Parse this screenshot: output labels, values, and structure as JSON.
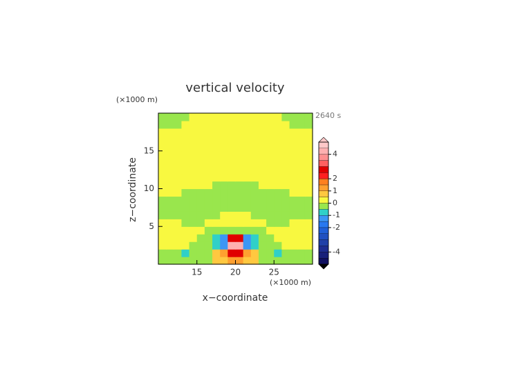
{
  "chart_data": {
    "type": "contour",
    "title": "vertical velocity",
    "xlabel": "x−coordinate",
    "ylabel": "z−coordinate",
    "xunit": "(×1000 m)",
    "yunit": "(×1000 m)",
    "time_label": "2640 s",
    "xlim": [
      10,
      30
    ],
    "ylim": [
      0,
      20
    ],
    "xticks": [
      15,
      20,
      25
    ],
    "yticks": [
      5,
      10,
      15
    ],
    "x": [
      10.5,
      11.5,
      12.5,
      13.5,
      14.5,
      15.5,
      16.5,
      17.5,
      18.5,
      19.5,
      20.5,
      21.5,
      22.5,
      23.5,
      24.5,
      25.5,
      26.5,
      27.5,
      28.5,
      29.5
    ],
    "y": [
      0.5,
      1.5,
      2.5,
      3.5,
      4.5,
      5.5,
      6.5,
      7.5,
      8.5,
      9.5,
      10.5,
      11.5,
      12.5,
      13.5,
      14.5,
      15.5,
      16.5,
      17.5,
      18.5,
      19.5
    ],
    "z": [
      [
        -0.2,
        -0.2,
        -0.2,
        -0.2,
        -0.2,
        -0.2,
        -0.2,
        0.7,
        0.7,
        1.2,
        1.2,
        0.7,
        0.7,
        -0.2,
        -0.2,
        -0.2,
        -0.2,
        -0.2,
        -0.2,
        -0.2
      ],
      [
        -0.2,
        -0.2,
        -0.2,
        -0.7,
        -0.2,
        -0.2,
        -0.2,
        0.7,
        1.2,
        2.5,
        2.5,
        1.2,
        0.7,
        -0.2,
        -0.2,
        -0.7,
        -0.2,
        -0.2,
        -0.2,
        -0.2
      ],
      [
        0.2,
        0.2,
        0.2,
        0.2,
        -0.2,
        -0.2,
        -0.2,
        -0.7,
        -1.5,
        4.2,
        4.2,
        -1.5,
        -0.7,
        -0.2,
        -0.2,
        -0.2,
        0.2,
        0.2,
        0.2,
        0.2
      ],
      [
        0.2,
        0.2,
        0.2,
        0.2,
        0.2,
        -0.2,
        -0.2,
        -0.7,
        -1.5,
        2.5,
        2.5,
        -1.5,
        -0.7,
        -0.2,
        -0.2,
        0.2,
        0.2,
        0.2,
        0.2,
        0.2
      ],
      [
        0.2,
        0.2,
        0.2,
        0.2,
        0.2,
        0.2,
        -0.2,
        -0.2,
        -0.2,
        -0.2,
        -0.2,
        -0.2,
        -0.2,
        -0.2,
        0.2,
        0.2,
        0.2,
        0.2,
        0.2,
        0.2
      ],
      [
        0.2,
        0.2,
        0.2,
        -0.2,
        -0.2,
        -0.2,
        0.2,
        0.2,
        0.2,
        0.2,
        0.2,
        0.2,
        0.2,
        0.2,
        -0.2,
        -0.2,
        -0.2,
        0.2,
        0.2,
        0.2
      ],
      [
        -0.2,
        -0.2,
        -0.2,
        -0.2,
        -0.2,
        -0.2,
        -0.2,
        -0.2,
        0.2,
        0.2,
        0.2,
        0.2,
        -0.2,
        -0.2,
        -0.2,
        -0.2,
        -0.2,
        -0.2,
        -0.2,
        -0.2
      ],
      [
        -0.2,
        -0.2,
        -0.2,
        -0.2,
        -0.2,
        -0.2,
        -0.2,
        -0.2,
        -0.2,
        -0.2,
        -0.2,
        -0.2,
        -0.2,
        -0.2,
        -0.2,
        -0.2,
        -0.2,
        -0.2,
        -0.2,
        -0.2
      ],
      [
        -0.2,
        -0.2,
        -0.2,
        -0.2,
        -0.2,
        -0.2,
        -0.2,
        -0.2,
        -0.2,
        -0.2,
        -0.2,
        -0.2,
        -0.2,
        -0.2,
        -0.2,
        -0.2,
        -0.2,
        -0.2,
        -0.2,
        -0.2
      ],
      [
        0.2,
        0.2,
        0.2,
        -0.2,
        -0.2,
        -0.2,
        -0.2,
        -0.2,
        -0.2,
        -0.2,
        -0.2,
        -0.2,
        -0.2,
        -0.2,
        -0.2,
        -0.2,
        -0.2,
        0.2,
        0.2,
        0.2
      ],
      [
        0.2,
        0.2,
        0.2,
        0.2,
        0.2,
        0.2,
        0.2,
        -0.2,
        -0.2,
        -0.2,
        -0.2,
        -0.2,
        -0.2,
        0.2,
        0.2,
        0.2,
        0.2,
        0.2,
        0.2,
        0.2
      ],
      [
        0.2,
        0.2,
        0.2,
        0.2,
        0.2,
        0.2,
        0.2,
        0.2,
        0.2,
        0.2,
        0.2,
        0.2,
        0.2,
        0.2,
        0.2,
        0.2,
        0.2,
        0.2,
        0.2,
        0.2
      ],
      [
        0.2,
        0.2,
        0.2,
        0.2,
        0.2,
        0.2,
        0.2,
        0.2,
        0.2,
        0.2,
        0.2,
        0.2,
        0.2,
        0.2,
        0.2,
        0.2,
        0.2,
        0.2,
        0.2,
        0.2
      ],
      [
        0.2,
        0.2,
        0.2,
        0.2,
        0.2,
        0.2,
        0.2,
        0.2,
        0.2,
        0.2,
        0.2,
        0.2,
        0.2,
        0.2,
        0.2,
        0.2,
        0.2,
        0.2,
        0.2,
        0.2
      ],
      [
        0.2,
        0.2,
        0.2,
        0.2,
        0.2,
        0.2,
        0.2,
        0.2,
        0.2,
        0.2,
        0.2,
        0.2,
        0.2,
        0.2,
        0.2,
        0.2,
        0.2,
        0.2,
        0.2,
        0.2
      ],
      [
        0.2,
        0.2,
        0.2,
        0.2,
        0.2,
        0.2,
        0.2,
        0.2,
        0.2,
        0.2,
        0.2,
        0.2,
        0.2,
        0.2,
        0.2,
        0.2,
        0.2,
        0.2,
        0.2,
        0.2
      ],
      [
        0.2,
        0.2,
        0.2,
        0.2,
        0.2,
        0.2,
        0.2,
        0.2,
        0.2,
        0.2,
        0.2,
        0.2,
        0.2,
        0.2,
        0.2,
        0.2,
        0.2,
        0.2,
        0.2,
        0.2
      ],
      [
        0.2,
        0.2,
        0.2,
        0.2,
        0.2,
        0.2,
        0.2,
        0.2,
        0.2,
        0.2,
        0.2,
        0.2,
        0.2,
        0.2,
        0.2,
        0.2,
        0.2,
        0.2,
        0.2,
        0.2
      ],
      [
        -0.2,
        -0.2,
        -0.2,
        0.2,
        0.2,
        0.2,
        0.2,
        0.2,
        0.2,
        0.2,
        0.2,
        0.2,
        0.2,
        0.2,
        0.2,
        0.2,
        0.2,
        -0.2,
        -0.2,
        -0.2
      ],
      [
        -0.2,
        -0.2,
        -0.2,
        -0.2,
        0.2,
        0.2,
        0.2,
        0.2,
        0.2,
        0.2,
        0.2,
        0.2,
        0.2,
        0.2,
        0.2,
        0.2,
        -0.2,
        -0.2,
        -0.2,
        -0.2
      ]
    ],
    "levels": [
      -5,
      -4.5,
      -4,
      -3.5,
      -3,
      -2.5,
      -2,
      -1.5,
      -1,
      -0.5,
      0,
      0.5,
      1,
      1.5,
      2,
      2.5,
      3,
      3.5,
      4,
      4.5,
      5
    ],
    "colors": [
      "#101060",
      "#18207a",
      "#1e2d90",
      "#2040a8",
      "#2050c0",
      "#2060d8",
      "#2878f0",
      "#3c96f5",
      "#30d0c8",
      "#99e64d",
      "#f8f840",
      "#ffc840",
      "#ffa030",
      "#ff8020",
      "#ff2020",
      "#e00000",
      "#ff6060",
      "#ff9090",
      "#ffb0b0",
      "#ffc8c8"
    ],
    "over_color": "#ffc8c8",
    "under_color": "#000000",
    "cbticks": [
      -4,
      -2,
      -1,
      0,
      1,
      2,
      4
    ]
  }
}
